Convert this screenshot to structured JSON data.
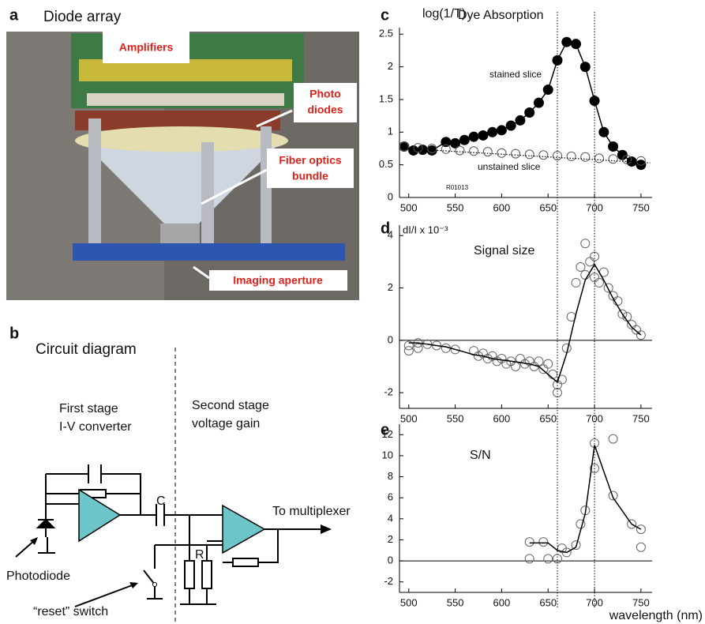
{
  "panel_labels": [
    "a",
    "b",
    "c",
    "d",
    "e"
  ],
  "photo": {
    "title": "Diode array",
    "labels": [
      [
        "Amplifiers"
      ],
      [
        "Photo",
        "diodes"
      ],
      [
        "Fiber optics",
        "bundle"
      ],
      [
        "Imaging aperture"
      ]
    ]
  },
  "circuit": {
    "title": "Circuit diagram",
    "stage1": [
      "First stage",
      "I-V converter"
    ],
    "stage2": [
      "Second stage",
      "voltage gain"
    ],
    "capacitor": "C",
    "resistor": "R",
    "output": "To multiplexer",
    "photodiode": "Photodiode",
    "switch": "“reset” switch"
  },
  "markers": [
    660,
    700
  ],
  "chart_data": [
    {
      "type": "line",
      "ylabel": "log(1/T)",
      "title": "Dye Absorption",
      "annotations": [
        "stained slice",
        "unstained slice",
        "R01013"
      ],
      "xlim": [
        490,
        762
      ],
      "xticks": [
        500,
        550,
        600,
        650,
        700,
        750
      ],
      "ylim": [
        0,
        2.6
      ],
      "yticks": [
        0,
        0.5,
        1,
        1.5,
        2,
        2.5
      ],
      "zero_line": false,
      "series": [
        {
          "style": "filled-line",
          "color": "#000000",
          "x": [
            495,
            505,
            515,
            525,
            540,
            550,
            560,
            570,
            580,
            590,
            600,
            610,
            620,
            630,
            640,
            650,
            660,
            670,
            680,
            690,
            700,
            710,
            720,
            730,
            740,
            750
          ],
          "values": [
            0.78,
            0.72,
            0.73,
            0.72,
            0.85,
            0.83,
            0.88,
            0.93,
            0.95,
            1.0,
            1.03,
            1.1,
            1.18,
            1.3,
            1.45,
            1.65,
            2.1,
            2.38,
            2.35,
            2.0,
            1.48,
            1.0,
            0.78,
            0.65,
            0.55,
            0.5
          ]
        },
        {
          "style": "open",
          "color": "#555555",
          "x": [
            495,
            510,
            525,
            540,
            555,
            570,
            585,
            600,
            615,
            630,
            645,
            660,
            675,
            690,
            705,
            720,
            735,
            750
          ],
          "values": [
            0.78,
            0.76,
            0.75,
            0.74,
            0.72,
            0.71,
            0.7,
            0.68,
            0.67,
            0.66,
            0.65,
            0.64,
            0.63,
            0.62,
            0.6,
            0.59,
            0.58,
            0.56
          ]
        },
        {
          "style": "dotted",
          "color": "#000000",
          "x": [
            495,
            760
          ],
          "values": [
            0.75,
            0.53
          ]
        }
      ]
    },
    {
      "type": "line",
      "ylabel": "dI/I x 10⁻³",
      "title": "Signal size",
      "annotations": [],
      "xlim": [
        490,
        762
      ],
      "xticks": [
        500,
        550,
        600,
        650,
        700,
        750
      ],
      "ylim": [
        -2.6,
        4.4
      ],
      "yticks": [
        -2,
        0,
        2,
        4
      ],
      "zero_line": true,
      "series": [
        {
          "style": "open",
          "color": "#666666",
          "x": [
            500,
            500,
            510,
            510,
            520,
            530,
            540,
            550,
            570,
            575,
            580,
            585,
            590,
            595,
            600,
            605,
            610,
            615,
            620,
            625,
            630,
            635,
            640,
            645,
            650,
            655,
            660,
            660,
            665,
            670,
            675,
            680,
            685,
            690,
            690,
            695,
            700,
            700,
            705,
            710,
            715,
            720,
            725,
            730,
            735,
            740,
            745,
            750
          ],
          "values": [
            -0.2,
            -0.4,
            -0.1,
            -0.3,
            -0.15,
            -0.2,
            -0.3,
            -0.35,
            -0.4,
            -0.6,
            -0.5,
            -0.7,
            -0.6,
            -0.8,
            -0.7,
            -0.9,
            -0.8,
            -1.0,
            -0.7,
            -0.9,
            -0.8,
            -1.0,
            -0.8,
            -1.1,
            -0.9,
            -1.3,
            -1.7,
            -2.0,
            -1.5,
            -0.3,
            0.9,
            2.2,
            2.8,
            3.7,
            2.5,
            3.0,
            3.2,
            2.4,
            2.2,
            2.6,
            2.0,
            1.7,
            1.5,
            1.0,
            0.9,
            0.6,
            0.4,
            0.2
          ]
        },
        {
          "style": "line",
          "color": "#000000",
          "x": [
            500,
            510,
            520,
            530,
            540,
            550,
            560,
            570,
            580,
            590,
            600,
            610,
            620,
            630,
            640,
            650,
            660,
            670,
            680,
            690,
            700,
            710,
            720,
            730,
            740,
            750
          ],
          "values": [
            -0.1,
            -0.1,
            -0.15,
            -0.2,
            -0.25,
            -0.35,
            -0.45,
            -0.55,
            -0.6,
            -0.7,
            -0.75,
            -0.8,
            -0.85,
            -0.9,
            -1.0,
            -1.3,
            -1.6,
            -0.5,
            1.0,
            2.3,
            2.9,
            2.3,
            1.6,
            1.0,
            0.5,
            0.2
          ]
        }
      ]
    },
    {
      "type": "line",
      "ylabel": "",
      "title": "S/N",
      "annotations": [],
      "xlabel": "wavelength (nm)",
      "xlim": [
        490,
        762
      ],
      "xticks": [
        500,
        550,
        600,
        650,
        700,
        750
      ],
      "ylim": [
        -3,
        13
      ],
      "yticks": [
        -2,
        0,
        2,
        4,
        6,
        8,
        10,
        12
      ],
      "zero_line": true,
      "series": [
        {
          "style": "open",
          "color": "#666666",
          "x": [
            630,
            630,
            645,
            650,
            660,
            665,
            670,
            680,
            685,
            690,
            700,
            700,
            720,
            720,
            740,
            750,
            750
          ],
          "values": [
            1.8,
            0.2,
            1.8,
            0.2,
            0.2,
            1.2,
            0.8,
            1.5,
            3.5,
            4.8,
            8.8,
            11.2,
            6.2,
            11.6,
            3.5,
            3.0,
            1.3
          ]
        },
        {
          "style": "line",
          "color": "#000000",
          "x": [
            630,
            650,
            660,
            670,
            680,
            690,
            700,
            720,
            740,
            750
          ],
          "values": [
            1.7,
            1.7,
            1.0,
            0.8,
            1.3,
            4.5,
            11,
            6,
            3.5,
            3.0
          ]
        }
      ]
    }
  ]
}
